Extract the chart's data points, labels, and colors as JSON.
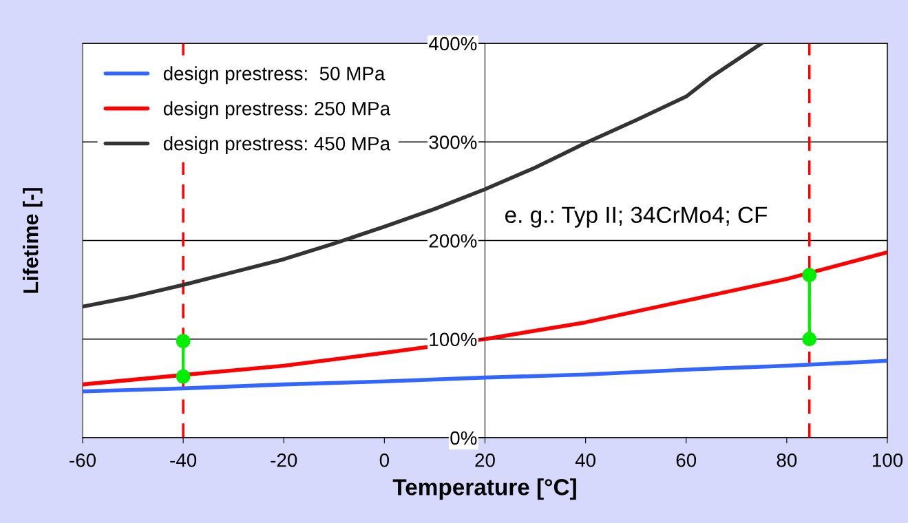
{
  "chart_data": {
    "type": "line",
    "xlabel": "Temperature [°C]",
    "ylabel": "Lifetime [-]",
    "xlim": [
      -60,
      100
    ],
    "xticks": [
      -60,
      -40,
      -20,
      0,
      20,
      40,
      60,
      80,
      100
    ],
    "ylim": [
      0,
      400
    ],
    "yticks": [
      {
        "value": 0,
        "label": "0%"
      },
      {
        "value": 100,
        "label": "100%"
      },
      {
        "value": 200,
        "label": "200%"
      },
      {
        "value": 300,
        "label": "300%"
      },
      {
        "value": 400,
        "label": "400%"
      }
    ],
    "grid": "y",
    "legend": "top left",
    "line_style": "solid",
    "marker": "none",
    "annotations": [
      "e. g.: Typ II; 34CrMo4; CF"
    ],
    "ref_lines": [
      {
        "axis": "x",
        "value": -40,
        "label": null,
        "color": "#ff0000",
        "line_style": "dashed"
      },
      {
        "axis": "x",
        "value": 84.5,
        "label": null,
        "color": "#ff0000",
        "line_style": "dashed"
      }
    ],
    "series": [
      {
        "name": "design prestress:  50 MPa",
        "color": "#3366ff",
        "x": [
          -60,
          -40,
          -20,
          0,
          20,
          40,
          60,
          80,
          100
        ],
        "values": [
          47,
          50,
          54,
          57,
          61,
          64,
          69,
          73,
          78
        ]
      },
      {
        "name": "design prestress: 250 MPa",
        "color": "#ff0000",
        "x": [
          -60,
          -35,
          -20,
          0,
          20,
          40,
          60,
          80,
          100
        ],
        "values": [
          54,
          66,
          73,
          86,
          100,
          117,
          139,
          161,
          188
        ]
      },
      {
        "name": "design prestress: 450 MPa",
        "color": "#333333",
        "x": [
          -60,
          -50,
          -40,
          -30,
          -20,
          -10,
          0,
          10,
          20,
          30,
          40,
          50,
          60,
          65,
          70,
          75
        ],
        "values": [
          133,
          143,
          155,
          168,
          181,
          197,
          214,
          232,
          252,
          274,
          299,
          322,
          346,
          366,
          383,
          400
        ]
      },
      {
        "color": "#00ee00",
        "marker": "circle",
        "x": [
          -40,
          -40
        ],
        "values": [
          98,
          62
        ]
      },
      {
        "color": "#00ee00",
        "marker": "circle",
        "x": [
          84.5,
          84.5
        ],
        "values": [
          165,
          100
        ]
      }
    ]
  }
}
